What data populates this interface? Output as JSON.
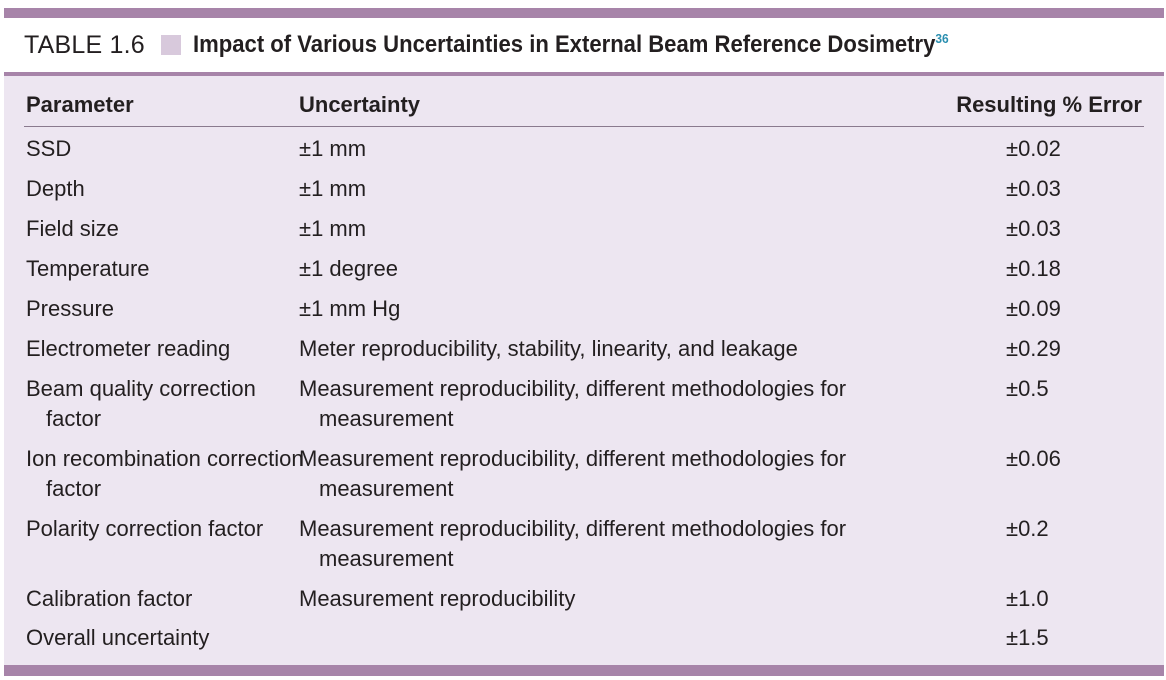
{
  "table": {
    "label": "TABLE 1.6",
    "title": "Impact of Various Uncertainties in External Beam Reference Dosimetry",
    "ref": "36",
    "headers": {
      "parameter": "Parameter",
      "uncertainty": "Uncertainty",
      "error": "Resulting % Error"
    },
    "rows": [
      {
        "parameter": "SSD",
        "uncertainty": "±1 mm",
        "error": "±0.02"
      },
      {
        "parameter": "Depth",
        "uncertainty": "±1 mm",
        "error": "±0.03"
      },
      {
        "parameter": "Field size",
        "uncertainty": "±1 mm",
        "error": "±0.03"
      },
      {
        "parameter": "Temperature",
        "uncertainty": "±1 degree",
        "error": "±0.18"
      },
      {
        "parameter": "Pressure",
        "uncertainty": "±1 mm Hg",
        "error": "±0.09"
      },
      {
        "parameter": "Electrometer reading",
        "uncertainty": "Meter reproducibility, stability, linearity, and leakage",
        "error": "±0.29"
      },
      {
        "parameter": "Beam quality correction factor",
        "uncertainty": "Measurement reproducibility, different methodologies for measurement",
        "error": "±0.5"
      },
      {
        "parameter": "Ion recombination correction factor",
        "uncertainty": "Measurement reproducibility, different methodologies for measurement",
        "error": "±0.06"
      },
      {
        "parameter": "Polarity correction factor",
        "uncertainty": "Measurement reproducibility, different methodologies for measurement",
        "error": "±0.2"
      },
      {
        "parameter": "Calibration factor",
        "uncertainty": "Measurement reproducibility",
        "error": "±1.0"
      },
      {
        "parameter": "Overall uncertainty",
        "uncertainty": "",
        "error": "±1.5"
      }
    ]
  }
}
